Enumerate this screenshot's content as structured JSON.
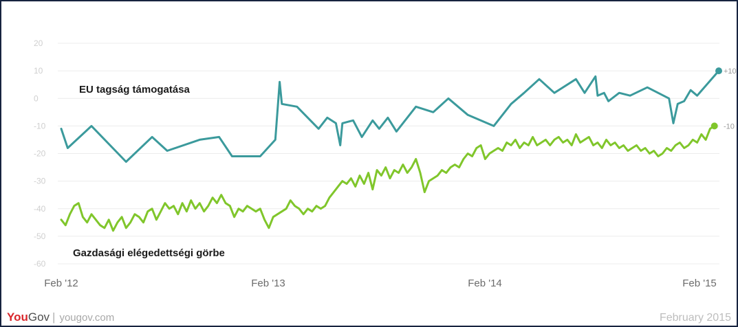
{
  "footer": {
    "brand_you": "You",
    "brand_gov": "Gov",
    "separator": "|",
    "url": "yougov.com",
    "date": "February 2015"
  },
  "chart_data": {
    "type": "line",
    "yticks": [
      20,
      10,
      0,
      -10,
      -20,
      -30,
      -40,
      -50,
      -60
    ],
    "ylim": [
      -60,
      20
    ],
    "xticks": [
      "Feb '12",
      "Feb '13",
      "Feb '14",
      "Feb '15"
    ],
    "grid": true,
    "end_labels": [
      "+10",
      "-10"
    ],
    "colors": {
      "eu": "#3b9a9c",
      "econ": "#80c62b",
      "grid": "#ececec",
      "tick": "#cfcfcf",
      "xtick": "#6b6b6b"
    },
    "series": [
      {
        "name": "EU tagság támogatása",
        "color": "#3b9a9c",
        "points": [
          [
            2012.08,
            -11
          ],
          [
            2012.11,
            -18
          ],
          [
            2012.22,
            -10
          ],
          [
            2012.38,
            -23
          ],
          [
            2012.5,
            -14
          ],
          [
            2012.57,
            -19
          ],
          [
            2012.72,
            -15
          ],
          [
            2012.81,
            -14
          ],
          [
            2012.87,
            -21
          ],
          [
            2013.0,
            -21
          ],
          [
            2013.07,
            -15
          ],
          [
            2013.09,
            6
          ],
          [
            2013.1,
            -2
          ],
          [
            2013.17,
            -3
          ],
          [
            2013.27,
            -11
          ],
          [
            2013.31,
            -7
          ],
          [
            2013.35,
            -9
          ],
          [
            2013.37,
            -17
          ],
          [
            2013.38,
            -9
          ],
          [
            2013.43,
            -8
          ],
          [
            2013.47,
            -14
          ],
          [
            2013.52,
            -8
          ],
          [
            2013.55,
            -11
          ],
          [
            2013.59,
            -7
          ],
          [
            2013.63,
            -12
          ],
          [
            2013.72,
            -3
          ],
          [
            2013.8,
            -5
          ],
          [
            2013.87,
            0
          ],
          [
            2013.96,
            -6
          ],
          [
            2014.08,
            -10
          ],
          [
            2014.16,
            -2
          ],
          [
            2014.22,
            2
          ],
          [
            2014.29,
            7
          ],
          [
            2014.36,
            2
          ],
          [
            2014.46,
            7
          ],
          [
            2014.5,
            2
          ],
          [
            2014.55,
            8
          ],
          [
            2014.56,
            1
          ],
          [
            2014.59,
            2
          ],
          [
            2014.61,
            -1
          ],
          [
            2014.66,
            2
          ],
          [
            2014.71,
            1
          ],
          [
            2014.79,
            4
          ],
          [
            2014.89,
            0
          ],
          [
            2014.91,
            -9
          ],
          [
            2014.93,
            -2
          ],
          [
            2014.96,
            -1
          ],
          [
            2014.99,
            3
          ],
          [
            2015.02,
            1
          ],
          [
            2015.12,
            10
          ]
        ]
      },
      {
        "name": "Gazdasági elégedettségi görbe",
        "color": "#80c62b",
        "points": [
          [
            2012.08,
            -44
          ],
          [
            2012.1,
            -46
          ],
          [
            2012.12,
            -42
          ],
          [
            2012.14,
            -39
          ],
          [
            2012.16,
            -38
          ],
          [
            2012.18,
            -43
          ],
          [
            2012.2,
            -45
          ],
          [
            2012.22,
            -42
          ],
          [
            2012.24,
            -44
          ],
          [
            2012.26,
            -46
          ],
          [
            2012.28,
            -47
          ],
          [
            2012.3,
            -44
          ],
          [
            2012.32,
            -48
          ],
          [
            2012.34,
            -45
          ],
          [
            2012.36,
            -43
          ],
          [
            2012.38,
            -47
          ],
          [
            2012.4,
            -45
          ],
          [
            2012.42,
            -42
          ],
          [
            2012.44,
            -43
          ],
          [
            2012.46,
            -45
          ],
          [
            2012.48,
            -41
          ],
          [
            2012.5,
            -40
          ],
          [
            2012.52,
            -44
          ],
          [
            2012.54,
            -41
          ],
          [
            2012.56,
            -38
          ],
          [
            2012.58,
            -40
          ],
          [
            2012.6,
            -39
          ],
          [
            2012.62,
            -42
          ],
          [
            2012.64,
            -38
          ],
          [
            2012.66,
            -41
          ],
          [
            2012.68,
            -37
          ],
          [
            2012.7,
            -40
          ],
          [
            2012.72,
            -38
          ],
          [
            2012.74,
            -41
          ],
          [
            2012.76,
            -39
          ],
          [
            2012.78,
            -36
          ],
          [
            2012.8,
            -38
          ],
          [
            2012.82,
            -35
          ],
          [
            2012.84,
            -38
          ],
          [
            2012.86,
            -39
          ],
          [
            2012.88,
            -43
          ],
          [
            2012.9,
            -40
          ],
          [
            2012.92,
            -41
          ],
          [
            2012.94,
            -39
          ],
          [
            2012.96,
            -40
          ],
          [
            2012.98,
            -41
          ],
          [
            2013.0,
            -40
          ],
          [
            2013.02,
            -44
          ],
          [
            2013.04,
            -47
          ],
          [
            2013.06,
            -43
          ],
          [
            2013.08,
            -42
          ],
          [
            2013.1,
            -41
          ],
          [
            2013.12,
            -40
          ],
          [
            2013.14,
            -37
          ],
          [
            2013.16,
            -39
          ],
          [
            2013.18,
            -40
          ],
          [
            2013.2,
            -42
          ],
          [
            2013.22,
            -40
          ],
          [
            2013.24,
            -41
          ],
          [
            2013.26,
            -39
          ],
          [
            2013.28,
            -40
          ],
          [
            2013.3,
            -39
          ],
          [
            2013.32,
            -36
          ],
          [
            2013.34,
            -34
          ],
          [
            2013.36,
            -32
          ],
          [
            2013.38,
            -30
          ],
          [
            2013.4,
            -31
          ],
          [
            2013.42,
            -29
          ],
          [
            2013.44,
            -32
          ],
          [
            2013.46,
            -28
          ],
          [
            2013.48,
            -31
          ],
          [
            2013.5,
            -27
          ],
          [
            2013.52,
            -33
          ],
          [
            2013.54,
            -26
          ],
          [
            2013.56,
            -28
          ],
          [
            2013.58,
            -25
          ],
          [
            2013.6,
            -29
          ],
          [
            2013.62,
            -26
          ],
          [
            2013.64,
            -27
          ],
          [
            2013.66,
            -24
          ],
          [
            2013.68,
            -27
          ],
          [
            2013.7,
            -25
          ],
          [
            2013.72,
            -22
          ],
          [
            2013.74,
            -27
          ],
          [
            2013.76,
            -34
          ],
          [
            2013.78,
            -30
          ],
          [
            2013.8,
            -29
          ],
          [
            2013.82,
            -28
          ],
          [
            2013.84,
            -26
          ],
          [
            2013.86,
            -27
          ],
          [
            2013.88,
            -25
          ],
          [
            2013.9,
            -24
          ],
          [
            2013.92,
            -25
          ],
          [
            2013.94,
            -22
          ],
          [
            2013.96,
            -20
          ],
          [
            2013.98,
            -21
          ],
          [
            2014.0,
            -18
          ],
          [
            2014.02,
            -17
          ],
          [
            2014.04,
            -22
          ],
          [
            2014.06,
            -20
          ],
          [
            2014.08,
            -19
          ],
          [
            2014.1,
            -18
          ],
          [
            2014.12,
            -19
          ],
          [
            2014.14,
            -16
          ],
          [
            2014.16,
            -17
          ],
          [
            2014.18,
            -15
          ],
          [
            2014.2,
            -18
          ],
          [
            2014.22,
            -16
          ],
          [
            2014.24,
            -17
          ],
          [
            2014.26,
            -14
          ],
          [
            2014.28,
            -17
          ],
          [
            2014.3,
            -16
          ],
          [
            2014.32,
            -15
          ],
          [
            2014.34,
            -17
          ],
          [
            2014.36,
            -15
          ],
          [
            2014.38,
            -14
          ],
          [
            2014.4,
            -16
          ],
          [
            2014.42,
            -15
          ],
          [
            2014.44,
            -17
          ],
          [
            2014.46,
            -13
          ],
          [
            2014.48,
            -16
          ],
          [
            2014.5,
            -15
          ],
          [
            2014.52,
            -14
          ],
          [
            2014.54,
            -17
          ],
          [
            2014.56,
            -16
          ],
          [
            2014.58,
            -18
          ],
          [
            2014.6,
            -15
          ],
          [
            2014.62,
            -17
          ],
          [
            2014.64,
            -16
          ],
          [
            2014.66,
            -18
          ],
          [
            2014.68,
            -17
          ],
          [
            2014.7,
            -19
          ],
          [
            2014.72,
            -18
          ],
          [
            2014.74,
            -17
          ],
          [
            2014.76,
            -19
          ],
          [
            2014.78,
            -18
          ],
          [
            2014.8,
            -20
          ],
          [
            2014.82,
            -19
          ],
          [
            2014.84,
            -21
          ],
          [
            2014.86,
            -20
          ],
          [
            2014.88,
            -18
          ],
          [
            2014.9,
            -19
          ],
          [
            2014.92,
            -17
          ],
          [
            2014.94,
            -16
          ],
          [
            2014.96,
            -18
          ],
          [
            2014.98,
            -17
          ],
          [
            2015.0,
            -15
          ],
          [
            2015.02,
            -16
          ],
          [
            2015.04,
            -13
          ],
          [
            2015.06,
            -15
          ],
          [
            2015.08,
            -11
          ],
          [
            2015.1,
            -10
          ]
        ]
      }
    ]
  }
}
